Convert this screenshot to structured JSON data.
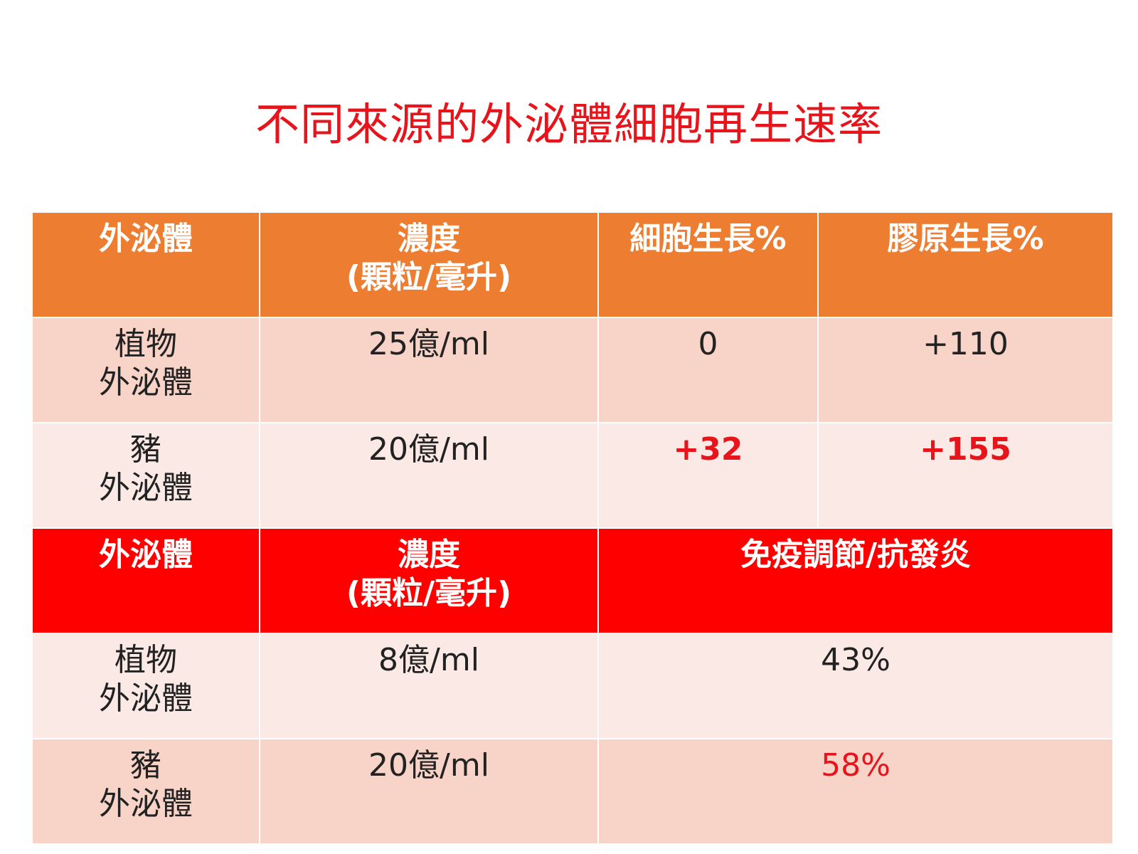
{
  "title": "不同來源的外泌體細胞再生速率",
  "table1": {
    "headers": [
      "外泌體",
      "濃度",
      "(顆粒/毫升)",
      "細胞生長%",
      "膠原生長%"
    ],
    "rows": [
      {
        "source_line1": "植物",
        "source_line2": "外泌體",
        "concentration": "25億/ml",
        "cell_growth": "0",
        "collagen_growth": "+110"
      },
      {
        "source_line1": "豬",
        "source_line2": "外泌體",
        "concentration": "20億/ml",
        "cell_growth": "+32",
        "collagen_growth": "+155"
      }
    ]
  },
  "table2": {
    "headers": [
      "外泌體",
      "濃度",
      "(顆粒/毫升)",
      "免疫調節/抗發炎"
    ],
    "rows": [
      {
        "source_line1": "植物",
        "source_line2": "外泌體",
        "concentration": "8億/ml",
        "immune": "43%"
      },
      {
        "source_line1": "豬",
        "source_line2": "外泌體",
        "concentration": "20億/ml",
        "immune": "58%"
      }
    ]
  },
  "colors": {
    "title": "#e8141b",
    "header_orange": "#ed7d31",
    "header_red": "#ff0000",
    "row_dark": "#f8d3c8",
    "row_light": "#fbe9e5",
    "highlight": "#e8141b"
  }
}
